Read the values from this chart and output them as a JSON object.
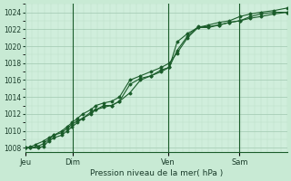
{
  "background_color": "#c8ead4",
  "plot_bg_color": "#d0eedc",
  "grid_major_color": "#a0c8b0",
  "grid_minor_color": "#b8dcc8",
  "line_color": "#1a5c2a",
  "xlabel_text": "Pression niveau de la mer( hPa )",
  "ylim": [
    1007.5,
    1025.0
  ],
  "yticks": [
    1008,
    1010,
    1012,
    1014,
    1016,
    1018,
    1020,
    1022,
    1024
  ],
  "xlim": [
    0,
    1.0
  ],
  "day_labels": [
    "Jeu",
    "Dim",
    "Ven",
    "Sam"
  ],
  "day_positions": [
    0.0,
    0.182,
    0.545,
    0.818
  ],
  "series": [
    {
      "x": [
        0.0,
        0.02,
        0.04,
        0.07,
        0.09,
        0.11,
        0.14,
        0.16,
        0.18,
        0.2,
        0.22,
        0.25,
        0.27,
        0.3,
        0.33,
        0.36,
        0.4,
        0.44,
        0.48,
        0.52,
        0.55,
        0.58,
        0.62,
        0.66,
        0.7,
        0.74,
        0.78,
        0.82,
        0.86,
        0.9,
        0.95,
        1.0
      ],
      "y": [
        1008.0,
        1008.1,
        1008.4,
        1008.8,
        1009.2,
        1009.5,
        1010.0,
        1010.5,
        1011.0,
        1011.5,
        1012.0,
        1012.5,
        1013.0,
        1013.3,
        1013.5,
        1014.0,
        1016.0,
        1016.5,
        1017.0,
        1017.5,
        1018.0,
        1019.2,
        1021.0,
        1022.2,
        1022.5,
        1022.8,
        1023.0,
        1023.5,
        1023.8,
        1024.0,
        1024.2,
        1024.5
      ]
    },
    {
      "x": [
        0.0,
        0.02,
        0.05,
        0.07,
        0.09,
        0.11,
        0.14,
        0.16,
        0.18,
        0.2,
        0.22,
        0.25,
        0.27,
        0.3,
        0.33,
        0.36,
        0.4,
        0.44,
        0.48,
        0.52,
        0.55,
        0.58,
        0.62,
        0.66,
        0.7,
        0.74,
        0.78,
        0.82,
        0.86,
        0.9,
        0.95,
        1.0
      ],
      "y": [
        1008.0,
        1008.0,
        1008.2,
        1008.5,
        1009.0,
        1009.5,
        1009.8,
        1010.3,
        1010.8,
        1011.2,
        1011.5,
        1012.2,
        1012.5,
        1012.8,
        1013.0,
        1013.5,
        1015.5,
        1016.2,
        1016.5,
        1017.2,
        1017.5,
        1019.5,
        1021.2,
        1022.3,
        1022.3,
        1022.5,
        1022.8,
        1023.0,
        1023.5,
        1023.8,
        1024.0,
        1024.0
      ]
    },
    {
      "x": [
        0.0,
        0.02,
        0.05,
        0.07,
        0.09,
        0.11,
        0.14,
        0.16,
        0.18,
        0.2,
        0.22,
        0.25,
        0.27,
        0.3,
        0.33,
        0.36,
        0.4,
        0.44,
        0.48,
        0.52,
        0.55,
        0.58,
        0.62,
        0.66,
        0.7,
        0.74,
        0.78,
        0.82,
        0.86,
        0.9,
        0.95,
        1.0
      ],
      "y": [
        1008.0,
        1008.0,
        1008.0,
        1008.2,
        1008.8,
        1009.2,
        1009.5,
        1010.0,
        1010.5,
        1011.0,
        1011.5,
        1012.0,
        1012.5,
        1013.0,
        1013.0,
        1013.5,
        1014.5,
        1016.0,
        1016.5,
        1017.0,
        1017.5,
        1020.5,
        1021.5,
        1022.2,
        1022.2,
        1022.5,
        1022.8,
        1023.0,
        1023.3,
        1023.5,
        1023.8,
        1024.0
      ]
    }
  ]
}
